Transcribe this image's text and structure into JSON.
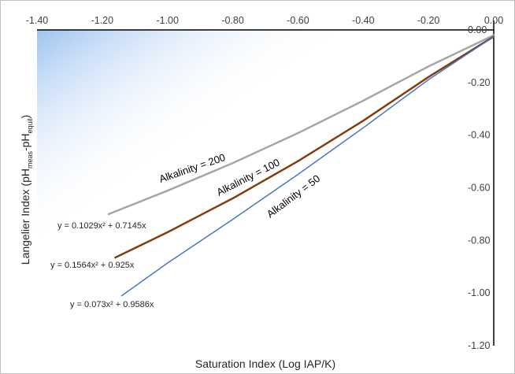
{
  "chart_data": {
    "type": "line",
    "xlabel": "Saturation Index (Log IAP/K)",
    "ylabel": "Langelier Index (pH",
    "ylabel_sub1": "meas",
    "ylabel_mid": "-pH",
    "ylabel_sub2": "equil",
    "ylabel_end": ")",
    "xlim": [
      -1.4,
      0.0
    ],
    "ylim": [
      -1.2,
      0.0
    ],
    "x_ticks": [
      "-1.40",
      "-1.20",
      "-1.00",
      "-0.80",
      "-0.60",
      "-0.40",
      "-0.20",
      "0.00"
    ],
    "y_ticks": [
      "0.00",
      "-0.20",
      "-0.40",
      "-0.60",
      "-0.80",
      "-1.00",
      "-1.20"
    ],
    "grid": false,
    "colors": {
      "alk200": "#a6a6a6",
      "alk100": "#843c0c",
      "alk50": "#4472c4",
      "axis": "#000000"
    },
    "series": [
      {
        "name": "Alkalinity = 200",
        "equation": "y = 0.1029x² + 0.7145x",
        "x": [
          -1.18,
          -1.0,
          -0.8,
          -0.6,
          -0.4,
          -0.2,
          0.0
        ],
        "values": [
          -0.7,
          -0.611,
          -0.506,
          -0.392,
          -0.269,
          -0.139,
          -0.02
        ]
      },
      {
        "name": "Alkalinity = 100",
        "equation": "y = 0.1564x² + 0.925x",
        "x": [
          -1.16,
          -1.0,
          -0.8,
          -0.6,
          -0.4,
          -0.2,
          0.0
        ],
        "values": [
          -0.865,
          -0.769,
          -0.64,
          -0.499,
          -0.345,
          -0.179,
          -0.025
        ]
      },
      {
        "name": "Alkalinity = 50",
        "equation": "y = 0.073x² + 0.9586x",
        "x": [
          -1.14,
          -1.0,
          -0.8,
          -0.6,
          -0.4,
          -0.2,
          0.0
        ],
        "values": [
          -1.01,
          -0.886,
          -0.72,
          -0.549,
          -0.372,
          -0.189,
          -0.025
        ]
      }
    ]
  }
}
